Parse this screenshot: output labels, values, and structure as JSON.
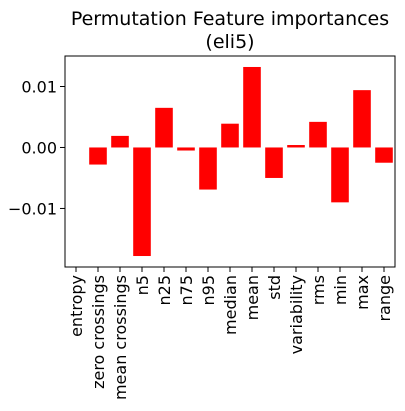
{
  "chart_data": {
    "type": "bar",
    "title_line1": "Permutation Feature importances",
    "title_line2": "(eli5)",
    "xlabel": "",
    "ylabel": "",
    "categories": [
      "entropy",
      "zero crossings",
      "mean crossings",
      "n5",
      "n25",
      "n75",
      "n95",
      "median",
      "mean",
      "std",
      "variability",
      "rms",
      "min",
      "max",
      "range"
    ],
    "values": [
      0.0,
      -0.0028,
      0.0019,
      -0.0178,
      0.0065,
      -0.0005,
      -0.0069,
      0.0039,
      0.0132,
      -0.005,
      0.0004,
      0.0042,
      -0.009,
      0.0094,
      -0.0025
    ],
    "ylim": [
      -0.0196,
      0.015
    ],
    "yticks": [
      -0.01,
      0.0,
      0.01
    ],
    "ytick_labels": [
      "−0.01",
      "0.00",
      "0.01"
    ],
    "bar_color": "#ff0000",
    "grid": false,
    "legend": "none"
  }
}
